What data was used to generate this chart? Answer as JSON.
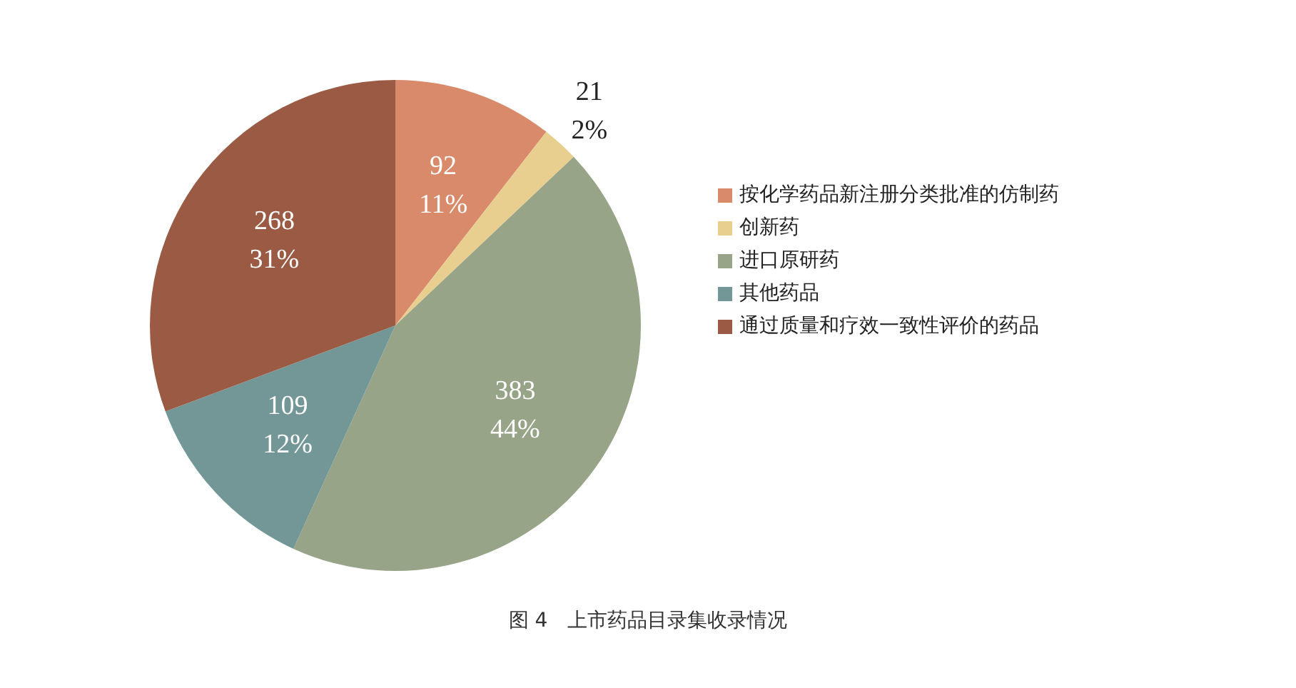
{
  "chart_data": {
    "type": "pie",
    "categories": [
      "按化学药品新注册分类批准的仿制药",
      "创新药",
      "进口原研药",
      "其他药品",
      "通过质量和疗效一致性评价的药品"
    ],
    "values": [
      92,
      21,
      383,
      109,
      268
    ],
    "colors": [
      "#d98a6a",
      "#e8cf8f",
      "#97a487",
      "#739797",
      "#9a5a43"
    ],
    "value_labels": [
      "92\n11%",
      "21\n2%",
      "383\n44%",
      "109\n12%",
      "268\n31%"
    ],
    "legend": "right",
    "annotations": [
      "图 4　上市药品目录集收录情况"
    ]
  }
}
